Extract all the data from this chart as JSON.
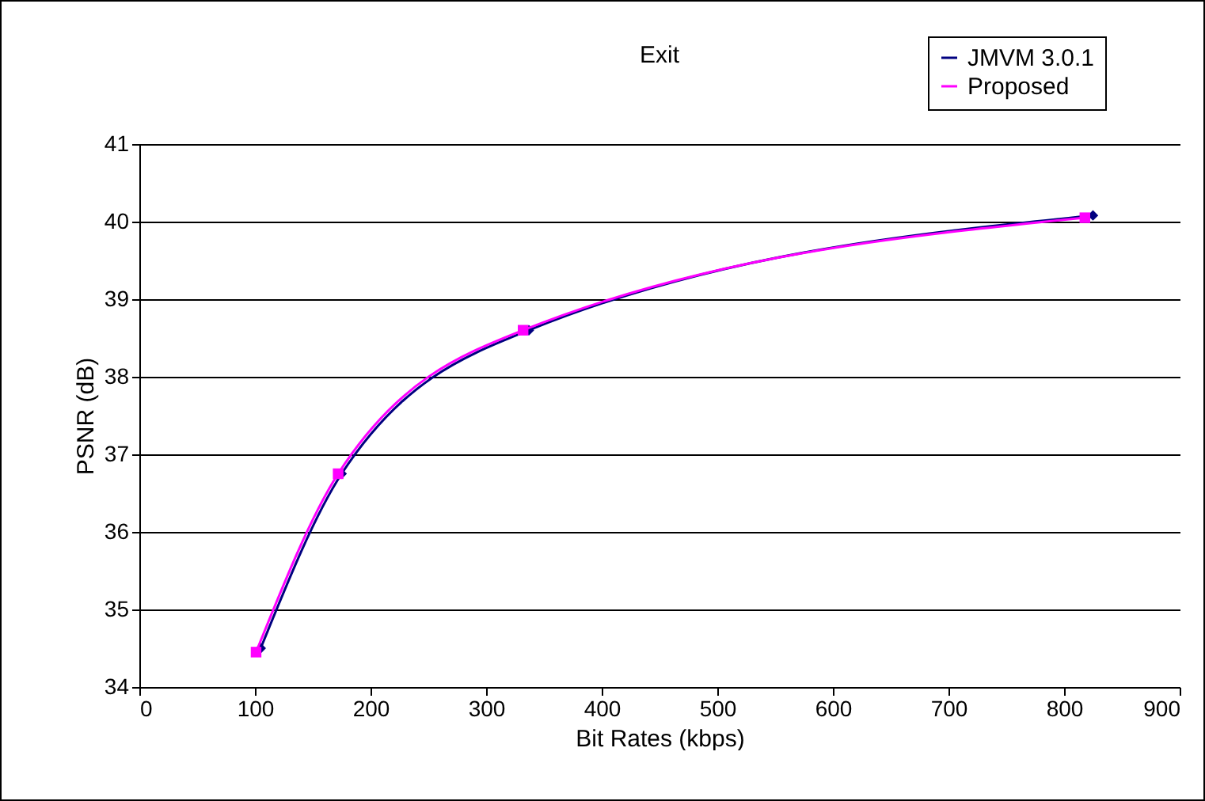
{
  "chart_data": {
    "type": "line",
    "title": "Exit",
    "xlabel": "Bit Rates (kbps)",
    "ylabel": "PSNR (dB)",
    "xlim": [
      0,
      900
    ],
    "xticks": [
      0,
      100,
      200,
      300,
      400,
      500,
      600,
      700,
      800,
      900
    ],
    "ylim": [
      34,
      41
    ],
    "yticks": [
      34,
      35,
      36,
      37,
      38,
      39,
      40,
      41
    ],
    "grid": "y",
    "legend": "top right",
    "series": [
      {
        "name": "JMVM 3.0.1",
        "color": "#000080",
        "marker": "diamond",
        "x": [
          105,
          175,
          337,
          825
        ],
        "values": [
          34.5,
          36.75,
          38.6,
          40.08
        ]
      },
      {
        "name": "Proposed",
        "color": "#ff00ff",
        "marker": "square",
        "x": [
          101,
          172,
          332,
          818
        ],
        "values": [
          34.45,
          36.75,
          38.6,
          40.05
        ]
      }
    ]
  }
}
